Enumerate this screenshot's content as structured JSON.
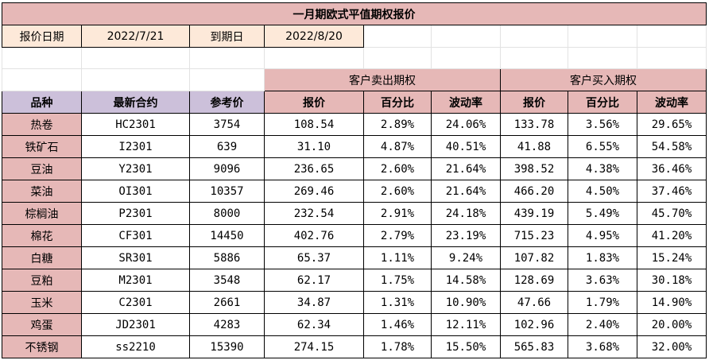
{
  "title": "一月期欧式平值期权报价",
  "info": {
    "quote_date_label": "报价日期",
    "quote_date": "2022/7/21",
    "expiry_label": "到期日",
    "expiry_date": "2022/8/20"
  },
  "groups": {
    "sell": "客户卖出期权",
    "buy": "客户买入期权"
  },
  "headers": [
    "品种",
    "最新合约",
    "参考价",
    "报价",
    "百分比",
    "波动率",
    "报价",
    "百分比",
    "波动率"
  ],
  "rows": [
    {
      "variety": "热卷",
      "contract": "HC2301",
      "ref_price": "3754",
      "sell_quote": "108.54",
      "sell_pct": "2.89%",
      "sell_vol": "24.06%",
      "buy_quote": "133.78",
      "buy_pct": "3.56%",
      "buy_vol": "29.65%"
    },
    {
      "variety": "铁矿石",
      "contract": "I2301",
      "ref_price": "639",
      "sell_quote": "31.10",
      "sell_pct": "4.87%",
      "sell_vol": "40.51%",
      "buy_quote": "41.88",
      "buy_pct": "6.55%",
      "buy_vol": "54.58%"
    },
    {
      "variety": "豆油",
      "contract": "Y2301",
      "ref_price": "9096",
      "sell_quote": "236.65",
      "sell_pct": "2.60%",
      "sell_vol": "21.64%",
      "buy_quote": "398.52",
      "buy_pct": "4.38%",
      "buy_vol": "36.46%"
    },
    {
      "variety": "菜油",
      "contract": "OI301",
      "ref_price": "10357",
      "sell_quote": "269.46",
      "sell_pct": "2.60%",
      "sell_vol": "21.64%",
      "buy_quote": "466.20",
      "buy_pct": "4.50%",
      "buy_vol": "37.46%"
    },
    {
      "variety": "棕榈油",
      "contract": "P2301",
      "ref_price": "8000",
      "sell_quote": "232.54",
      "sell_pct": "2.91%",
      "sell_vol": "24.18%",
      "buy_quote": "439.19",
      "buy_pct": "5.49%",
      "buy_vol": "45.70%"
    },
    {
      "variety": "棉花",
      "contract": "CF301",
      "ref_price": "14450",
      "sell_quote": "402.76",
      "sell_pct": "2.79%",
      "sell_vol": "23.19%",
      "buy_quote": "715.23",
      "buy_pct": "4.95%",
      "buy_vol": "41.20%"
    },
    {
      "variety": "白糖",
      "contract": "SR301",
      "ref_price": "5886",
      "sell_quote": "65.37",
      "sell_pct": "1.11%",
      "sell_vol": "9.24%",
      "buy_quote": "107.82",
      "buy_pct": "1.83%",
      "buy_vol": "15.24%"
    },
    {
      "variety": "豆粕",
      "contract": "M2301",
      "ref_price": "3548",
      "sell_quote": "62.17",
      "sell_pct": "1.75%",
      "sell_vol": "14.58%",
      "buy_quote": "128.69",
      "buy_pct": "3.63%",
      "buy_vol": "30.18%"
    },
    {
      "variety": "玉米",
      "contract": "C2301",
      "ref_price": "2661",
      "sell_quote": "34.87",
      "sell_pct": "1.31%",
      "sell_vol": "10.90%",
      "buy_quote": "47.66",
      "buy_pct": "1.79%",
      "buy_vol": "14.90%"
    },
    {
      "variety": "鸡蛋",
      "contract": "JD2301",
      "ref_price": "4283",
      "sell_quote": "62.34",
      "sell_pct": "1.46%",
      "sell_vol": "12.11%",
      "buy_quote": "102.96",
      "buy_pct": "2.40%",
      "buy_vol": "20.00%"
    },
    {
      "variety": "不锈钢",
      "contract": "ss2210",
      "ref_price": "15390",
      "sell_quote": "274.15",
      "sell_pct": "1.78%",
      "sell_vol": "15.50%",
      "buy_quote": "565.83",
      "buy_pct": "3.68%",
      "buy_vol": "32.00%"
    }
  ],
  "colors": {
    "pink": "#e6b8b7",
    "lavender": "#ccc0da",
    "peach": "#fde9d9",
    "gridline": "#e2e2e2",
    "border": "#000000"
  }
}
